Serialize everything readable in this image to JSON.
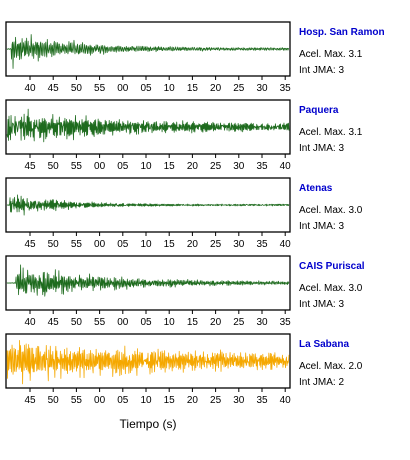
{
  "colors": {
    "trace_green": "#1e6b1e",
    "trace_orange": "#f5a800",
    "station_name": "#0000cc",
    "frame": "#000000",
    "text": "#000000"
  },
  "xlabel": "Tiempo (s)",
  "chart_data": [
    {
      "type": "line",
      "station": "Hosp. San Ramon",
      "acel": "Acel. Max. 3.1",
      "int": "Int JMA: 3",
      "color": "#1e6b1e",
      "ticks": [
        "40",
        "45",
        "50",
        "55",
        "00",
        "05",
        "10",
        "15",
        "20",
        "25",
        "30",
        "35"
      ],
      "waveform": {
        "onset": 0.015,
        "peak_amp": 0.85,
        "decay": 4.5,
        "noise_amp": 0.05,
        "cycles": 170,
        "seed": 3
      }
    },
    {
      "type": "line",
      "station": "Paquera",
      "acel": "Acel. Max. 3.1",
      "int": "Int JMA: 3",
      "color": "#1e6b1e",
      "ticks": [
        "45",
        "50",
        "55",
        "00",
        "05",
        "10",
        "15",
        "20",
        "25",
        "30",
        "35",
        "40"
      ],
      "waveform": {
        "onset": 0.0,
        "peak_amp": 0.8,
        "decay": 2.2,
        "noise_amp": 0.1,
        "cycles": 260,
        "seed": 7
      }
    },
    {
      "type": "line",
      "station": "Atenas",
      "acel": "Acel. Max. 3.0",
      "int": "Int JMA: 3",
      "color": "#1e6b1e",
      "ticks": [
        "45",
        "50",
        "55",
        "00",
        "05",
        "10",
        "15",
        "20",
        "25",
        "30",
        "35",
        "40"
      ],
      "waveform": {
        "onset": 0.01,
        "peak_amp": 0.7,
        "decay": 7.0,
        "noise_amp": 0.04,
        "cycles": 280,
        "seed": 11
      }
    },
    {
      "type": "line",
      "station": "CAIS Puriscal",
      "acel": "Acel. Max. 3.0",
      "int": "Int JMA: 3",
      "color": "#1e6b1e",
      "ticks": [
        "40",
        "45",
        "50",
        "55",
        "00",
        "05",
        "10",
        "15",
        "20",
        "25",
        "30",
        "35"
      ],
      "waveform": {
        "onset": 0.03,
        "peak_amp": 0.9,
        "decay": 3.2,
        "noise_amp": 0.04,
        "cycles": 200,
        "seed": 17
      }
    },
    {
      "type": "line",
      "station": "La Sabana",
      "acel": "Acel. Max. 2.0",
      "int": "Int JMA: 2",
      "color": "#f5a800",
      "ticks": [
        "45",
        "50",
        "55",
        "00",
        "05",
        "10",
        "15",
        "20",
        "25",
        "30",
        "35",
        "40"
      ],
      "waveform": {
        "onset": 0.0,
        "peak_amp": 0.95,
        "decay": 1.4,
        "noise_amp": 0.15,
        "cycles": 220,
        "seed": 23
      }
    }
  ]
}
